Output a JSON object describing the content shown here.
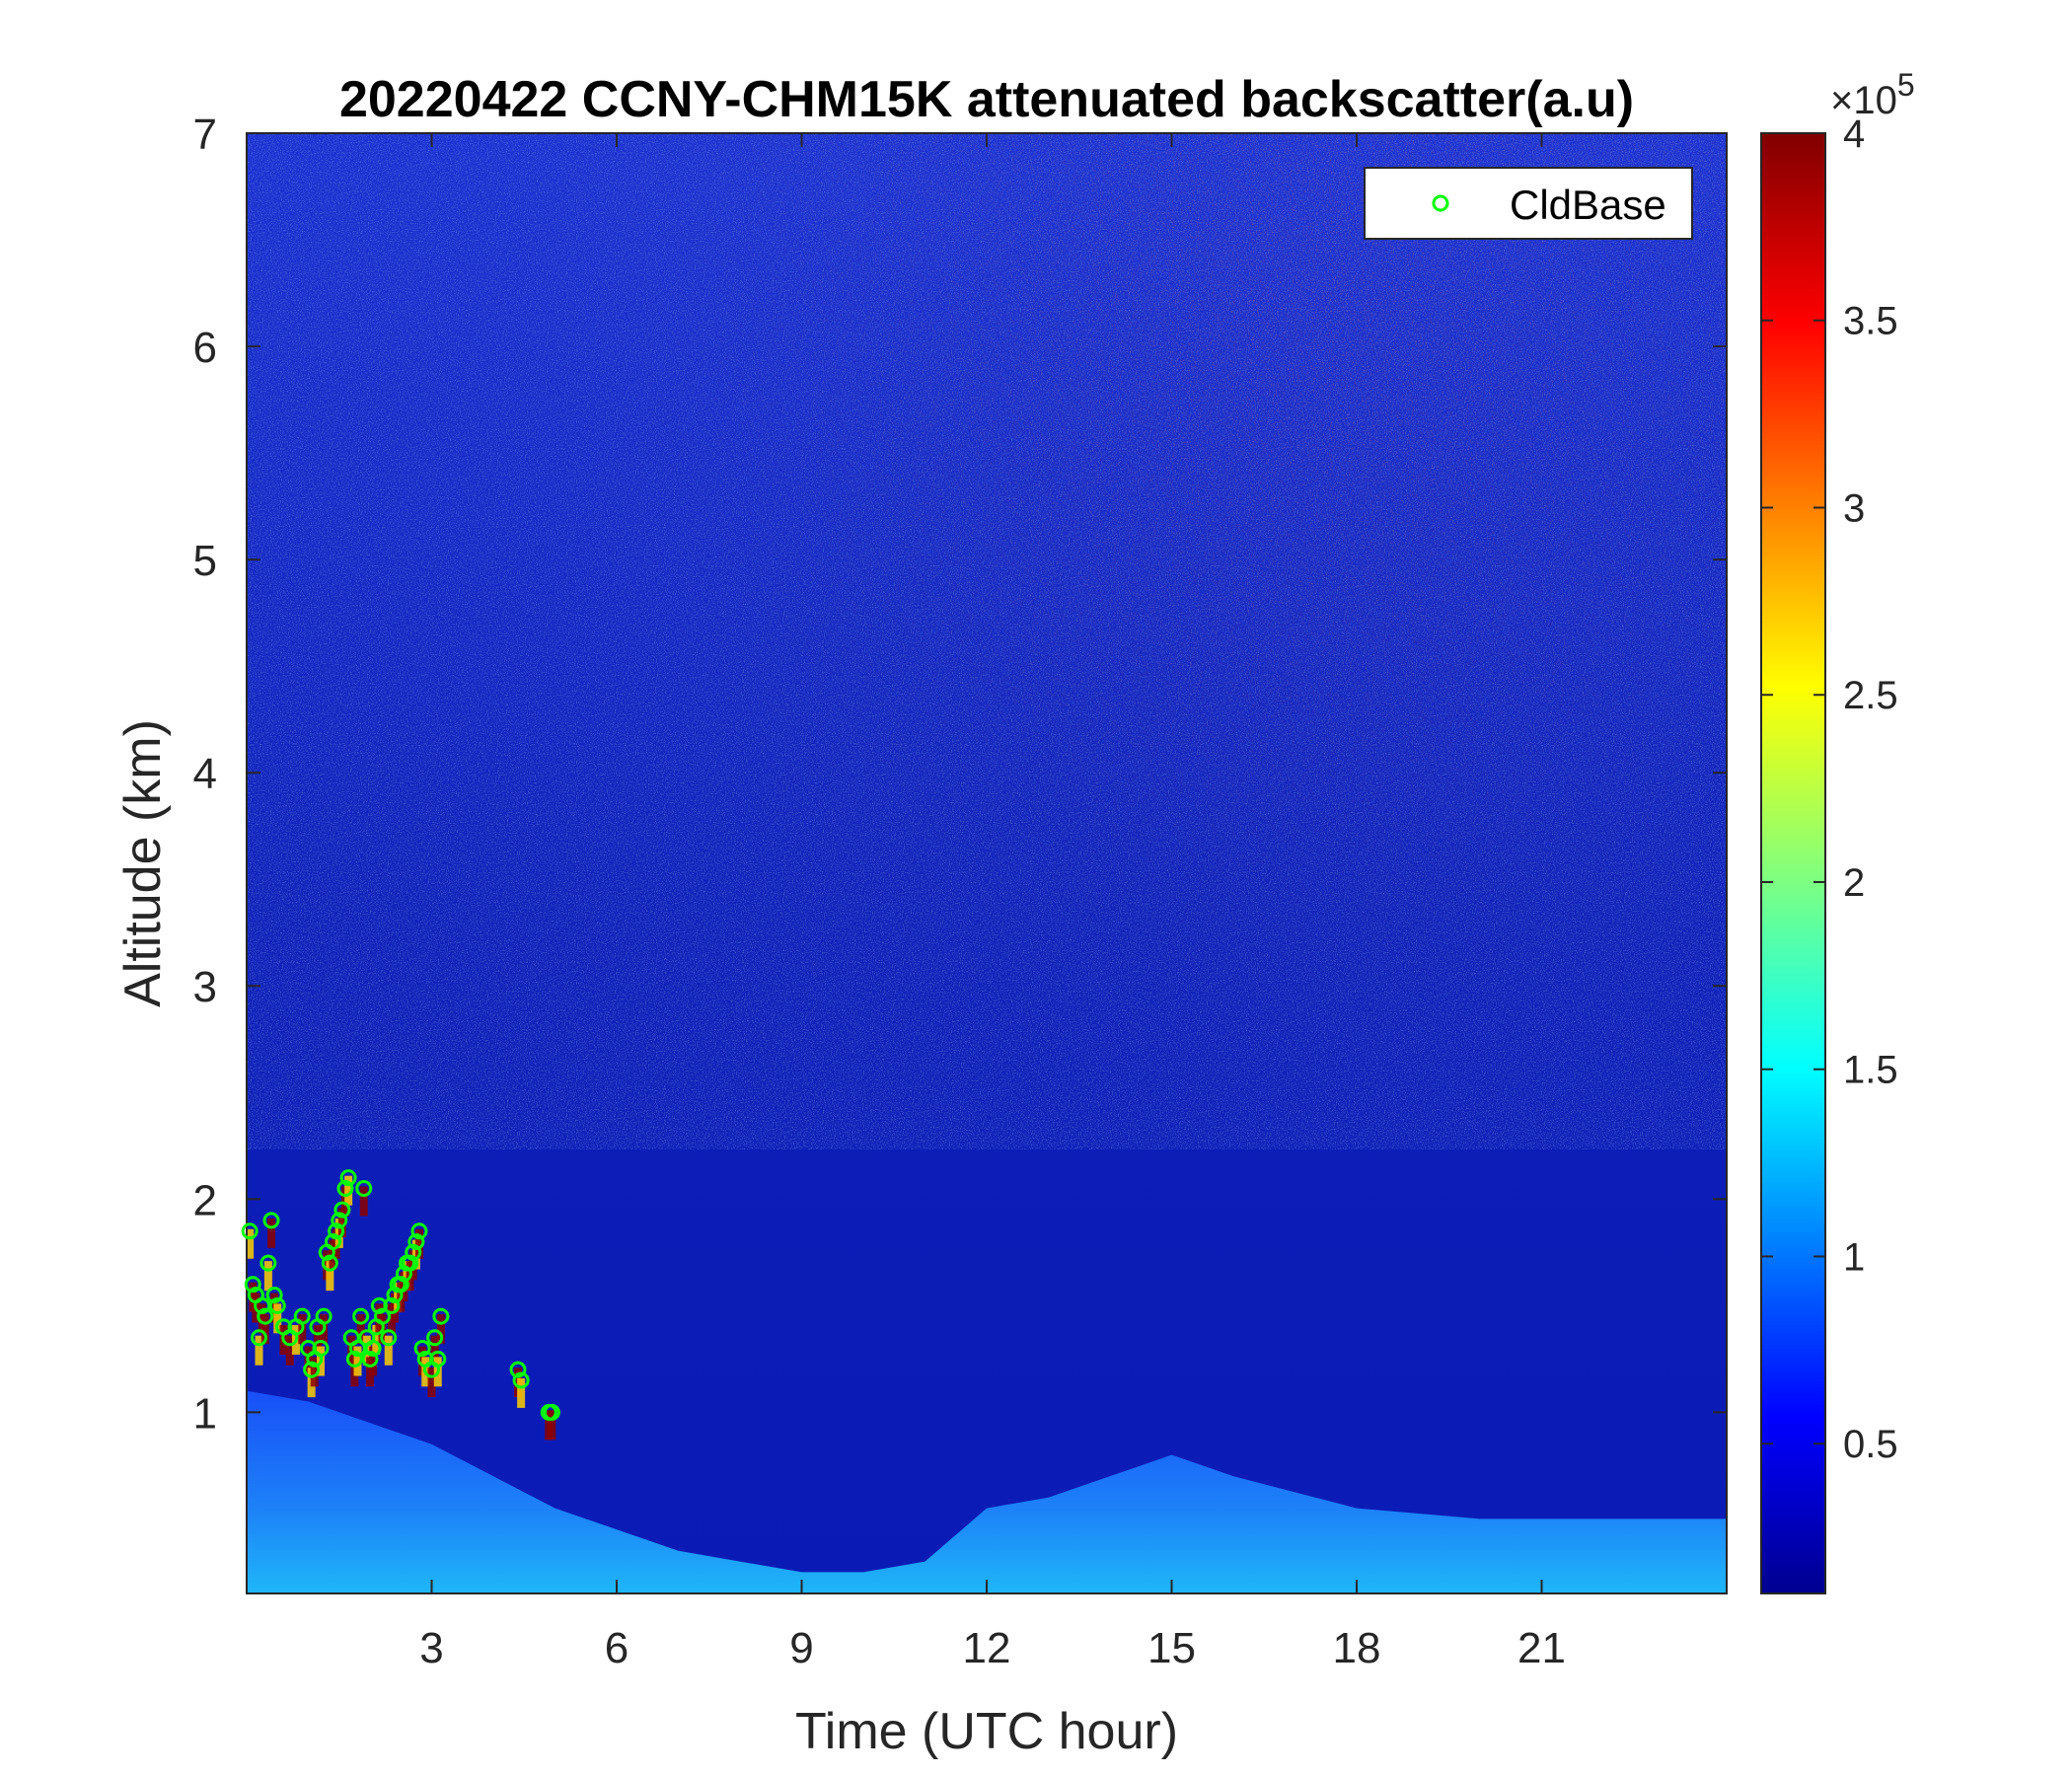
{
  "chart_data": {
    "type": "heatmap",
    "title": "20220422 CCNY-CHM15K attenuated backscatter(a.u)",
    "xlabel": "Time (UTC hour)",
    "ylabel": "Altitude (km)",
    "xlim": [
      0,
      24
    ],
    "ylim": [
      0.15,
      7
    ],
    "xticks": [
      3,
      6,
      9,
      12,
      15,
      18,
      21
    ],
    "yticks": [
      1,
      2,
      3,
      4,
      5,
      6,
      7
    ],
    "colorbar": {
      "colormap": "jet",
      "range": [
        0.1,
        4
      ],
      "ticks": [
        0.5,
        1,
        1.5,
        2,
        2.5,
        3,
        3.5,
        4
      ],
      "exponent_label": "×10",
      "exponent": "5"
    },
    "boundary_layer_top_km": [
      [
        0,
        1.1
      ],
      [
        1,
        1.05
      ],
      [
        2,
        0.95
      ],
      [
        3,
        0.85
      ],
      [
        4,
        0.7
      ],
      [
        5,
        0.55
      ],
      [
        6,
        0.45
      ],
      [
        7,
        0.35
      ],
      [
        8,
        0.3
      ],
      [
        9,
        0.25
      ],
      [
        10,
        0.25
      ],
      [
        11,
        0.3
      ],
      [
        12,
        0.55
      ],
      [
        13,
        0.6
      ],
      [
        14,
        0.7
      ],
      [
        15,
        0.8
      ],
      [
        16,
        0.7
      ],
      [
        18,
        0.55
      ],
      [
        20,
        0.5
      ],
      [
        22,
        0.5
      ],
      [
        24,
        0.5
      ]
    ],
    "series": [
      {
        "name": "CldBase",
        "marker": "circle",
        "color": "#00ff00",
        "points": [
          [
            0.05,
            1.85
          ],
          [
            0.1,
            1.6
          ],
          [
            0.15,
            1.55
          ],
          [
            0.2,
            1.35
          ],
          [
            0.25,
            1.5
          ],
          [
            0.3,
            1.45
          ],
          [
            0.35,
            1.7
          ],
          [
            0.4,
            1.9
          ],
          [
            0.45,
            1.55
          ],
          [
            0.5,
            1.5
          ],
          [
            0.6,
            1.4
          ],
          [
            0.7,
            1.35
          ],
          [
            0.8,
            1.4
          ],
          [
            0.9,
            1.45
          ],
          [
            1.0,
            1.3
          ],
          [
            1.05,
            1.2
          ],
          [
            1.1,
            1.25
          ],
          [
            1.15,
            1.4
          ],
          [
            1.2,
            1.3
          ],
          [
            1.25,
            1.45
          ],
          [
            1.3,
            1.75
          ],
          [
            1.35,
            1.7
          ],
          [
            1.4,
            1.8
          ],
          [
            1.45,
            1.85
          ],
          [
            1.5,
            1.9
          ],
          [
            1.55,
            1.95
          ],
          [
            1.6,
            2.05
          ],
          [
            1.65,
            2.1
          ],
          [
            1.7,
            1.35
          ],
          [
            1.75,
            1.25
          ],
          [
            1.8,
            1.3
          ],
          [
            1.85,
            1.45
          ],
          [
            1.9,
            2.05
          ],
          [
            1.95,
            1.35
          ],
          [
            2.0,
            1.25
          ],
          [
            2.05,
            1.3
          ],
          [
            2.1,
            1.4
          ],
          [
            2.15,
            1.5
          ],
          [
            2.2,
            1.45
          ],
          [
            2.3,
            1.35
          ],
          [
            2.35,
            1.5
          ],
          [
            2.4,
            1.55
          ],
          [
            2.45,
            1.6
          ],
          [
            2.5,
            1.6
          ],
          [
            2.55,
            1.65
          ],
          [
            2.6,
            1.7
          ],
          [
            2.65,
            1.7
          ],
          [
            2.7,
            1.75
          ],
          [
            2.75,
            1.8
          ],
          [
            2.8,
            1.85
          ],
          [
            2.85,
            1.3
          ],
          [
            2.9,
            1.25
          ],
          [
            3.0,
            1.2
          ],
          [
            3.05,
            1.35
          ],
          [
            3.1,
            1.25
          ],
          [
            3.15,
            1.45
          ],
          [
            4.4,
            1.2
          ],
          [
            4.45,
            1.15
          ],
          [
            4.9,
            1.0
          ],
          [
            4.95,
            1.0
          ]
        ]
      }
    ],
    "legend": {
      "placement": "top-right",
      "label": "CldBase"
    }
  }
}
